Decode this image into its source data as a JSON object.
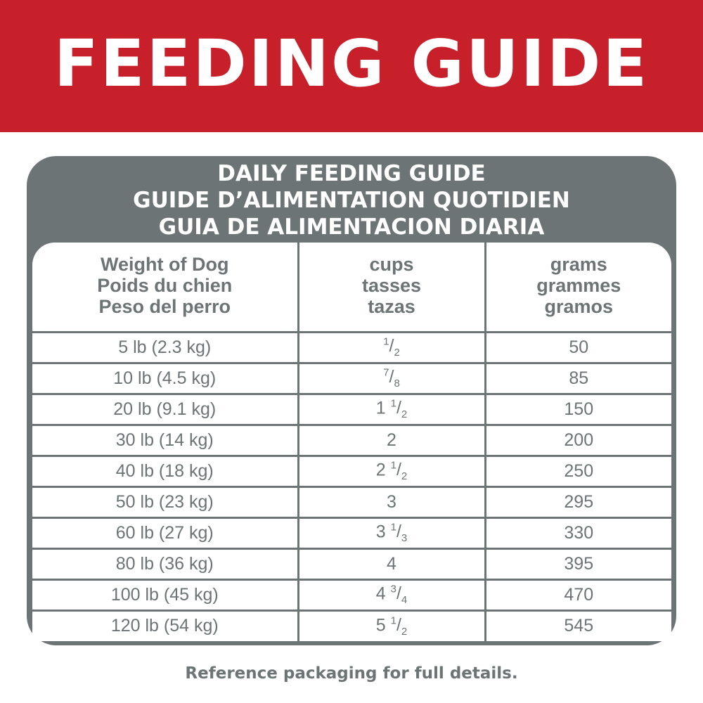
{
  "banner": {
    "title": "FEEDING GUIDE"
  },
  "colors": {
    "brand_red": "#c8202a",
    "gray": "#6d7476"
  },
  "table": {
    "titles": [
      "DAILY FEEDING GUIDE",
      "GUIDE D’ALIMENTATION QUOTIDIEN",
      "GUIA DE ALIMENTACION DIARIA"
    ],
    "headers": [
      [
        "Weight of Dog",
        "Poids du chien",
        "Peso del perro"
      ],
      [
        "cups",
        "tasses",
        "tazas"
      ],
      [
        "grams",
        "grammes",
        "gramos"
      ]
    ],
    "rows": [
      {
        "weight": "5 lb (2.3 kg)",
        "cups_whole": "",
        "cups_num": "1",
        "cups_den": "2",
        "grams": "50"
      },
      {
        "weight": "10 lb (4.5 kg)",
        "cups_whole": "",
        "cups_num": "7",
        "cups_den": "8",
        "grams": "85"
      },
      {
        "weight": "20 lb (9.1 kg)",
        "cups_whole": "1",
        "cups_num": "1",
        "cups_den": "2",
        "grams": "150"
      },
      {
        "weight": "30 lb (14 kg)",
        "cups_whole": "2",
        "cups_num": "",
        "cups_den": "",
        "grams": "200"
      },
      {
        "weight": "40 lb (18 kg)",
        "cups_whole": "2",
        "cups_num": "1",
        "cups_den": "2",
        "grams": "250"
      },
      {
        "weight": "50 lb (23 kg)",
        "cups_whole": "3",
        "cups_num": "",
        "cups_den": "",
        "grams": "295"
      },
      {
        "weight": "60 lb (27 kg)",
        "cups_whole": "3",
        "cups_num": "1",
        "cups_den": "3",
        "grams": "330"
      },
      {
        "weight": "80 lb (36 kg)",
        "cups_whole": "4",
        "cups_num": "",
        "cups_den": "",
        "grams": "395"
      },
      {
        "weight": "100 lb (45 kg)",
        "cups_whole": "4",
        "cups_num": "3",
        "cups_den": "4",
        "grams": "470"
      },
      {
        "weight": "120 lb (54 kg)",
        "cups_whole": "5",
        "cups_num": "1",
        "cups_den": "2",
        "grams": "545"
      }
    ]
  },
  "footer": "Reference packaging for full details."
}
